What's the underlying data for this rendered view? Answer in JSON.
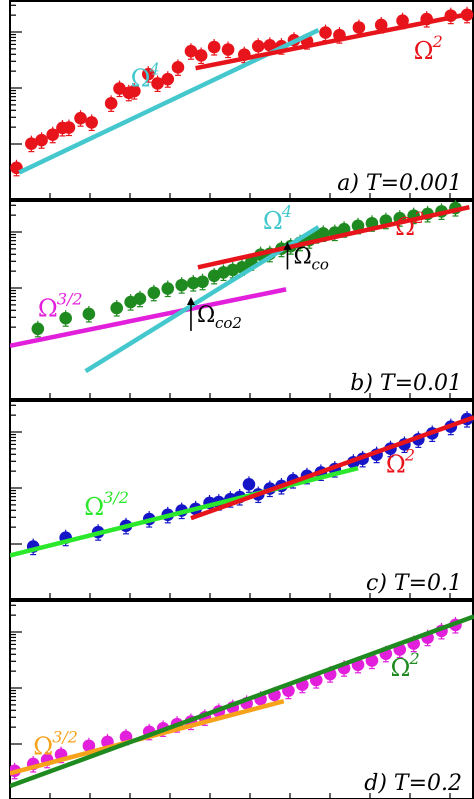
{
  "chart_data": [
    {
      "type": "scatter",
      "panel_label": "a) T=0.001",
      "marker_color": "#e8141b",
      "points": [
        [
          0.014,
          0.43
        ],
        [
          0.046,
          1.0
        ],
        [
          0.068,
          1.08
        ],
        [
          0.092,
          1.21
        ],
        [
          0.113,
          1.37
        ],
        [
          0.127,
          1.38
        ],
        [
          0.152,
          1.6
        ],
        [
          0.176,
          1.5
        ],
        [
          0.218,
          1.95
        ],
        [
          0.236,
          2.3
        ],
        [
          0.256,
          2.2
        ],
        [
          0.268,
          2.24
        ],
        [
          0.298,
          2.64
        ],
        [
          0.318,
          2.42
        ],
        [
          0.34,
          2.52
        ],
        [
          0.362,
          2.8
        ],
        [
          0.39,
          3.18
        ],
        [
          0.412,
          3.08
        ],
        [
          0.44,
          3.28
        ],
        [
          0.47,
          3.22
        ],
        [
          0.505,
          3.1
        ],
        [
          0.535,
          3.3
        ],
        [
          0.56,
          3.32
        ],
        [
          0.585,
          3.3
        ],
        [
          0.612,
          3.44
        ],
        [
          0.64,
          3.42
        ],
        [
          0.68,
          3.62
        ],
        [
          0.71,
          3.56
        ],
        [
          0.752,
          3.74
        ],
        [
          0.8,
          3.8
        ],
        [
          0.846,
          3.9
        ],
        [
          0.898,
          3.94
        ],
        [
          0.95,
          4.02
        ],
        [
          0.985,
          4.04
        ]
      ],
      "fits": [
        {
          "exponent": "4",
          "color": "#45c8cd",
          "label_x": 0.26,
          "label_y": 2.35,
          "segment": [
            [
              0.02,
              0.32
            ],
            [
              0.665,
              3.68
            ]
          ]
        },
        {
          "exponent": "2",
          "color": "#e8141b",
          "label_x": 0.87,
          "label_y": 3.0,
          "segment": [
            [
              0.4,
              2.78
            ],
            [
              0.995,
              4.07
            ]
          ]
        }
      ]
    },
    {
      "type": "scatter",
      "panel_label": "b) T=0.01",
      "marker_color": "#1f8a1f",
      "points": [
        [
          0.06,
          1.35
        ],
        [
          0.12,
          1.6
        ],
        [
          0.17,
          1.7
        ],
        [
          0.23,
          1.84
        ],
        [
          0.26,
          1.98
        ],
        [
          0.28,
          2.06
        ],
        [
          0.31,
          2.2
        ],
        [
          0.34,
          2.3
        ],
        [
          0.37,
          2.38
        ],
        [
          0.395,
          2.43
        ],
        [
          0.415,
          2.46
        ],
        [
          0.44,
          2.6
        ],
        [
          0.46,
          2.68
        ],
        [
          0.48,
          2.74
        ],
        [
          0.5,
          2.8
        ],
        [
          0.52,
          2.92
        ],
        [
          0.54,
          3.1
        ],
        [
          0.56,
          3.12
        ],
        [
          0.585,
          3.24
        ],
        [
          0.605,
          3.3
        ],
        [
          0.625,
          3.38
        ],
        [
          0.645,
          3.44
        ],
        [
          0.66,
          3.56
        ],
        [
          0.675,
          3.6
        ],
        [
          0.7,
          3.62
        ],
        [
          0.72,
          3.7
        ],
        [
          0.75,
          3.78
        ],
        [
          0.78,
          3.84
        ],
        [
          0.81,
          3.9
        ],
        [
          0.84,
          3.96
        ],
        [
          0.87,
          4.02
        ],
        [
          0.9,
          4.06
        ],
        [
          0.93,
          4.12
        ],
        [
          0.96,
          4.2
        ]
      ],
      "fits": [
        {
          "exponent": "3/2",
          "color": "#e21fdb",
          "label_x": 0.06,
          "label_y": 1.64,
          "segment": [
            [
              0.0,
              0.95
            ],
            [
              0.595,
              2.28
            ]
          ]
        },
        {
          "exponent": "4",
          "color": "#45c8cd",
          "label_x": 0.545,
          "label_y": 3.7,
          "segment": [
            [
              0.163,
              0.35
            ],
            [
              0.665,
              3.75
            ]
          ]
        },
        {
          "exponent": "2",
          "color": "#e8141b",
          "label_x": 0.83,
          "label_y": 3.56,
          "segment": [
            [
              0.405,
              2.8
            ],
            [
              0.99,
              4.22
            ]
          ]
        }
      ],
      "annotations": [
        {
          "label": "Ω",
          "sub": "co",
          "x": 0.598,
          "y_from": 2.75,
          "y_to": 3.4
        },
        {
          "label": "Ω",
          "sub": "co2",
          "x": 0.39,
          "y_from": 1.3,
          "y_to": 2.1
        }
      ]
    },
    {
      "type": "scatter",
      "panel_label": "c) T=0.1",
      "marker_color": "#1616c8",
      "points": [
        [
          0.05,
          0.93
        ],
        [
          0.12,
          1.14
        ],
        [
          0.19,
          1.27
        ],
        [
          0.25,
          1.42
        ],
        [
          0.3,
          1.58
        ],
        [
          0.34,
          1.68
        ],
        [
          0.37,
          1.78
        ],
        [
          0.4,
          1.82
        ],
        [
          0.43,
          1.96
        ],
        [
          0.45,
          1.98
        ],
        [
          0.475,
          2.05
        ],
        [
          0.495,
          2.1
        ],
        [
          0.515,
          2.4
        ],
        [
          0.535,
          2.16
        ],
        [
          0.56,
          2.3
        ],
        [
          0.585,
          2.36
        ],
        [
          0.61,
          2.5
        ],
        [
          0.64,
          2.6
        ],
        [
          0.67,
          2.68
        ],
        [
          0.7,
          2.76
        ],
        [
          0.74,
          2.92
        ],
        [
          0.76,
          3.0
        ],
        [
          0.79,
          3.1
        ],
        [
          0.82,
          3.24
        ],
        [
          0.85,
          3.34
        ],
        [
          0.88,
          3.46
        ],
        [
          0.91,
          3.6
        ],
        [
          0.95,
          3.76
        ],
        [
          0.985,
          3.94
        ]
      ],
      "fits": [
        {
          "exponent": "3/2",
          "color": "#2ce82c",
          "label_x": 0.16,
          "label_y": 1.68,
          "segment": [
            [
              0.0,
              0.72
            ],
            [
              0.75,
              2.78
            ]
          ]
        },
        {
          "exponent": "2",
          "color": "#e8141b",
          "label_x": 0.81,
          "label_y": 2.68,
          "segment": [
            [
              0.39,
              1.6
            ],
            [
              1.0,
              3.98
            ]
          ]
        }
      ]
    },
    {
      "type": "scatter",
      "panel_label": "d) T=0.2",
      "marker_color": "#e21fdb",
      "points": [
        [
          0.01,
          0.36
        ],
        [
          0.05,
          0.52
        ],
        [
          0.08,
          0.62
        ],
        [
          0.11,
          0.74
        ],
        [
          0.17,
          0.95
        ],
        [
          0.21,
          1.04
        ],
        [
          0.25,
          1.16
        ],
        [
          0.3,
          1.28
        ],
        [
          0.33,
          1.36
        ],
        [
          0.36,
          1.46
        ],
        [
          0.39,
          1.52
        ],
        [
          0.42,
          1.62
        ],
        [
          0.45,
          1.76
        ],
        [
          0.48,
          1.85
        ],
        [
          0.51,
          1.95
        ],
        [
          0.54,
          2.05
        ],
        [
          0.57,
          2.15
        ],
        [
          0.6,
          2.25
        ],
        [
          0.63,
          2.39
        ],
        [
          0.66,
          2.5
        ],
        [
          0.69,
          2.64
        ],
        [
          0.72,
          2.78
        ],
        [
          0.75,
          2.86
        ],
        [
          0.78,
          2.96
        ],
        [
          0.81,
          3.12
        ],
        [
          0.84,
          3.22
        ],
        [
          0.87,
          3.36
        ],
        [
          0.9,
          3.5
        ],
        [
          0.93,
          3.66
        ],
        [
          0.96,
          3.8
        ]
      ],
      "fits": [
        {
          "exponent": "3/2",
          "color": "#f7a21b",
          "label_x": 0.05,
          "label_y": 0.74,
          "segment": [
            [
              0.0,
              0.3
            ],
            [
              0.59,
              2.0
            ]
          ]
        },
        {
          "exponent": "2",
          "color": "#1f8a1f",
          "label_x": 0.82,
          "label_y": 2.6,
          "segment": [
            [
              0.0,
              0.0
            ],
            [
              1.0,
              4.0
            ]
          ]
        }
      ]
    }
  ]
}
